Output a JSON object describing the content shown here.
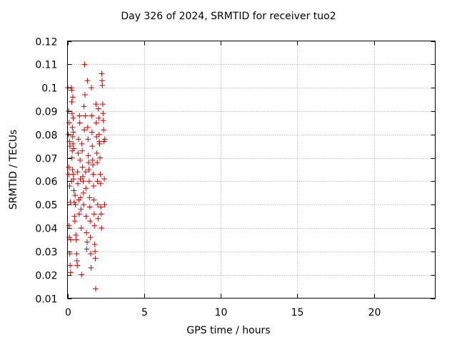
{
  "chart_data": {
    "type": "scatter",
    "title": "Day 326 of 2024, SRMTID for receiver tuo2",
    "xlabel": "GPS time / hours",
    "ylabel": "SRMTID / TECUs",
    "xlim": [
      0,
      24
    ],
    "ylim": [
      0.01,
      0.12
    ],
    "xticks": [
      0,
      5,
      10,
      15,
      20
    ],
    "yticks": [
      0.01,
      0.02,
      0.03,
      0.04,
      0.05,
      0.06,
      0.07,
      0.08,
      0.09,
      0.1,
      0.11,
      0.12
    ],
    "ytick_labels": [
      "0.01",
      "0.02",
      "0.03",
      "0.04",
      "0.05",
      "0.06",
      "0.07",
      "0.08",
      "0.09",
      "0.1",
      "0.11",
      "0.12"
    ],
    "grid": true,
    "marker": "plus",
    "color": "#cc0000",
    "points": [
      [
        0.02,
        0.1
      ],
      [
        0.05,
        0.08
      ],
      [
        0.08,
        0.063
      ],
      [
        0.1,
        0.041
      ],
      [
        0.12,
        0.036
      ],
      [
        0.15,
        0.029
      ],
      [
        0.17,
        0.024
      ],
      [
        0.2,
        0.021
      ],
      [
        0.07,
        0.09
      ],
      [
        0.11,
        0.085
      ],
      [
        0.13,
        0.077
      ],
      [
        0.16,
        0.075
      ],
      [
        0.09,
        0.066
      ],
      [
        0.14,
        0.058
      ],
      [
        0.18,
        0.051
      ],
      [
        0.21,
        0.035
      ],
      [
        0.25,
        0.1
      ],
      [
        0.27,
        0.099
      ],
      [
        0.28,
        0.094
      ],
      [
        0.3,
        0.089
      ],
      [
        0.32,
        0.083
      ],
      [
        0.34,
        0.079
      ],
      [
        0.36,
        0.076
      ],
      [
        0.33,
        0.065
      ],
      [
        0.38,
        0.063
      ],
      [
        0.4,
        0.061
      ],
      [
        0.42,
        0.056
      ],
      [
        0.44,
        0.051
      ],
      [
        0.46,
        0.045
      ],
      [
        0.48,
        0.043
      ],
      [
        0.29,
        0.07
      ],
      [
        0.31,
        0.073
      ],
      [
        0.35,
        0.096
      ],
      [
        0.37,
        0.087
      ],
      [
        0.39,
        0.081
      ],
      [
        0.41,
        0.074
      ],
      [
        0.26,
        0.06
      ],
      [
        0.5,
        0.054
      ],
      [
        0.52,
        0.05
      ],
      [
        0.55,
        0.037
      ],
      [
        0.57,
        0.035
      ],
      [
        0.6,
        0.029
      ],
      [
        0.62,
        0.026
      ],
      [
        0.64,
        0.024
      ],
      [
        0.66,
        0.064
      ],
      [
        0.68,
        0.059
      ],
      [
        0.7,
        0.072
      ],
      [
        0.72,
        0.078
      ],
      [
        0.74,
        0.052
      ],
      [
        0.76,
        0.046
      ],
      [
        0.78,
        0.088
      ],
      [
        0.8,
        0.085
      ],
      [
        0.82,
        0.069
      ],
      [
        0.84,
        0.061
      ],
      [
        0.86,
        0.053
      ],
      [
        0.88,
        0.048
      ],
      [
        0.9,
        0.04
      ],
      [
        0.92,
        0.02
      ],
      [
        0.94,
        0.076
      ],
      [
        0.96,
        0.073
      ],
      [
        0.98,
        0.066
      ],
      [
        1.0,
        0.062
      ],
      [
        1.02,
        0.06
      ],
      [
        1.04,
        0.055
      ],
      [
        1.06,
        0.05
      ],
      [
        1.08,
        0.092
      ],
      [
        1.1,
        0.082
      ],
      [
        1.12,
        0.11
      ],
      [
        1.14,
        0.097
      ],
      [
        1.16,
        0.088
      ],
      [
        1.18,
        0.064
      ],
      [
        1.2,
        0.057
      ],
      [
        1.22,
        0.045
      ],
      [
        1.24,
        0.038
      ],
      [
        1.26,
        0.031
      ],
      [
        1.28,
        0.034
      ],
      [
        1.3,
        0.103
      ],
      [
        1.32,
        0.083
      ],
      [
        1.34,
        0.078
      ],
      [
        1.36,
        0.071
      ],
      [
        1.38,
        0.068
      ],
      [
        1.4,
        0.065
      ],
      [
        1.42,
        0.06
      ],
      [
        1.44,
        0.053
      ],
      [
        1.46,
        0.049
      ],
      [
        1.48,
        0.043
      ],
      [
        1.5,
        0.036
      ],
      [
        1.52,
        0.029
      ],
      [
        1.54,
        0.023
      ],
      [
        1.56,
        0.1
      ],
      [
        1.58,
        0.088
      ],
      [
        1.6,
        0.081
      ],
      [
        1.62,
        0.075
      ],
      [
        1.64,
        0.069
      ],
      [
        1.66,
        0.067
      ],
      [
        1.68,
        0.063
      ],
      [
        1.7,
        0.058
      ],
      [
        1.72,
        0.052
      ],
      [
        1.74,
        0.046
      ],
      [
        1.76,
        0.041
      ],
      [
        1.78,
        0.033
      ],
      [
        1.8,
        0.03
      ],
      [
        1.82,
        0.027
      ],
      [
        1.84,
        0.014
      ],
      [
        1.86,
        0.093
      ],
      [
        1.88,
        0.085
      ],
      [
        1.9,
        0.079
      ],
      [
        1.92,
        0.072
      ],
      [
        1.94,
        0.068
      ],
      [
        1.96,
        0.06
      ],
      [
        1.98,
        0.05
      ],
      [
        2.0,
        0.044
      ],
      [
        2.02,
        0.091
      ],
      [
        2.04,
        0.087
      ],
      [
        2.06,
        0.08
      ],
      [
        2.08,
        0.077
      ],
      [
        2.1,
        0.076
      ],
      [
        2.12,
        0.07
      ],
      [
        2.14,
        0.063
      ],
      [
        2.16,
        0.059
      ],
      [
        2.18,
        0.049
      ],
      [
        2.2,
        0.046
      ],
      [
        2.22,
        0.04
      ],
      [
        2.24,
        0.106
      ],
      [
        2.26,
        0.103
      ],
      [
        2.28,
        0.101
      ],
      [
        2.3,
        0.093
      ],
      [
        2.32,
        0.089
      ],
      [
        2.34,
        0.086
      ],
      [
        2.36,
        0.082
      ],
      [
        2.38,
        0.077
      ],
      [
        2.4,
        0.061
      ],
      [
        2.42,
        0.05
      ],
      [
        2.44,
        0.078
      ]
    ]
  }
}
